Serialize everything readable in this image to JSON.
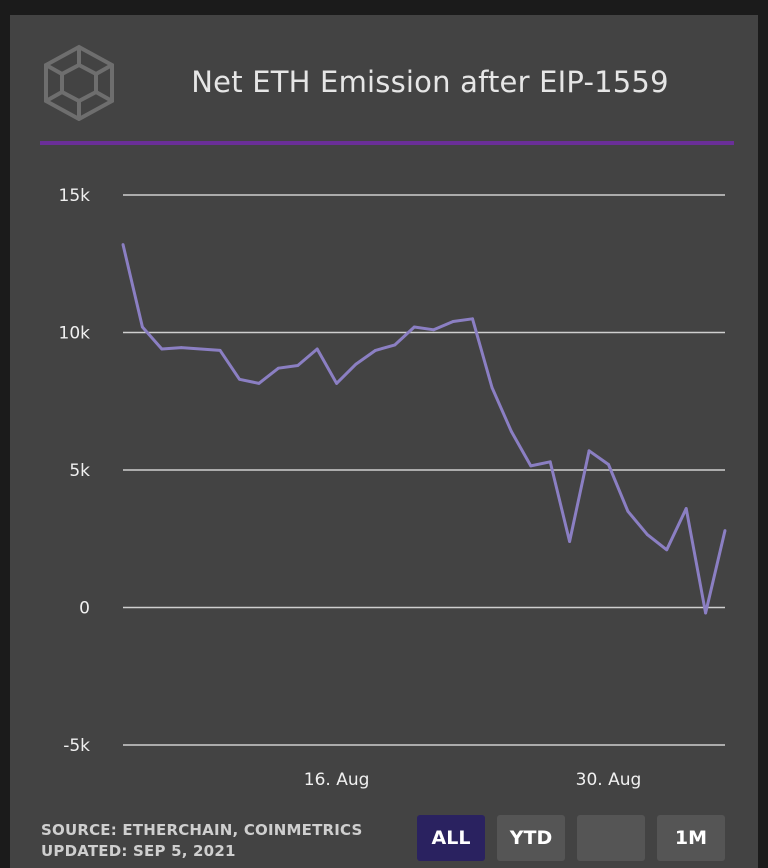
{
  "header": {
    "title": "Net ETH Emission after EIP-1559",
    "logo_icon": "cube-logo-icon"
  },
  "footer": {
    "source": "SOURCE: ETHERCHAIN, COINMETRICS",
    "updated": "UPDATED: SEP 5, 2021"
  },
  "range_buttons": [
    {
      "label": "ALL",
      "active": true
    },
    {
      "label": "YTD",
      "active": false
    },
    {
      "label": "",
      "active": false
    },
    {
      "label": "1M",
      "active": false
    }
  ],
  "colors": {
    "accent": "#6a2f98",
    "line": "#8b7fc3",
    "active_button": "#2a2260"
  },
  "chart_data": {
    "type": "line",
    "title": "Net ETH Emission after EIP-1559",
    "xlabel": "",
    "ylabel": "",
    "ylim": [
      -5000,
      15000
    ],
    "yticks": [
      15000,
      10000,
      5000,
      0,
      -5000
    ],
    "ytick_labels": [
      "15k",
      "10k",
      "5k",
      "0",
      "-5k"
    ],
    "xlim": [
      "2021-08-05",
      "2021-09-05"
    ],
    "xticks": [
      "2021-08-16",
      "2021-08-30"
    ],
    "xtick_labels": [
      "16. Aug",
      "30. Aug"
    ],
    "grid": true,
    "legend": false,
    "series": [
      {
        "x": [
          "2021-08-05",
          "2021-08-06",
          "2021-08-07",
          "2021-08-08",
          "2021-08-09",
          "2021-08-10",
          "2021-08-11",
          "2021-08-12",
          "2021-08-13",
          "2021-08-14",
          "2021-08-15",
          "2021-08-16",
          "2021-08-17",
          "2021-08-18",
          "2021-08-19",
          "2021-08-20",
          "2021-08-21",
          "2021-08-22",
          "2021-08-23",
          "2021-08-24",
          "2021-08-25",
          "2021-08-26",
          "2021-08-27",
          "2021-08-28",
          "2021-08-29",
          "2021-08-30",
          "2021-08-31",
          "2021-09-01",
          "2021-09-02",
          "2021-09-03",
          "2021-09-04",
          "2021-09-05"
        ],
        "values": [
          13200,
          10200,
          9400,
          9450,
          9400,
          9350,
          8300,
          8150,
          8700,
          8800,
          9400,
          8150,
          8850,
          9350,
          9550,
          10200,
          10100,
          10400,
          10500,
          8000,
          6400,
          5150,
          5300,
          2400,
          5700,
          5200,
          3500,
          2650,
          2100,
          3600,
          -200,
          2800
        ]
      }
    ]
  }
}
